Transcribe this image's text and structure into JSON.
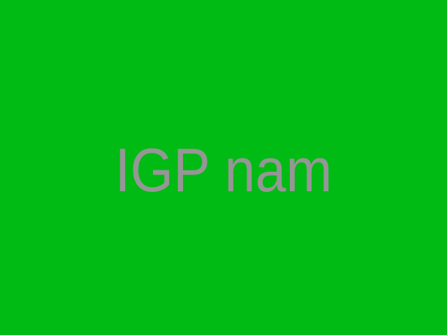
{
  "screen": {
    "text": "IGP nam",
    "background_color": "#00bb14",
    "text_color": "#969696"
  }
}
